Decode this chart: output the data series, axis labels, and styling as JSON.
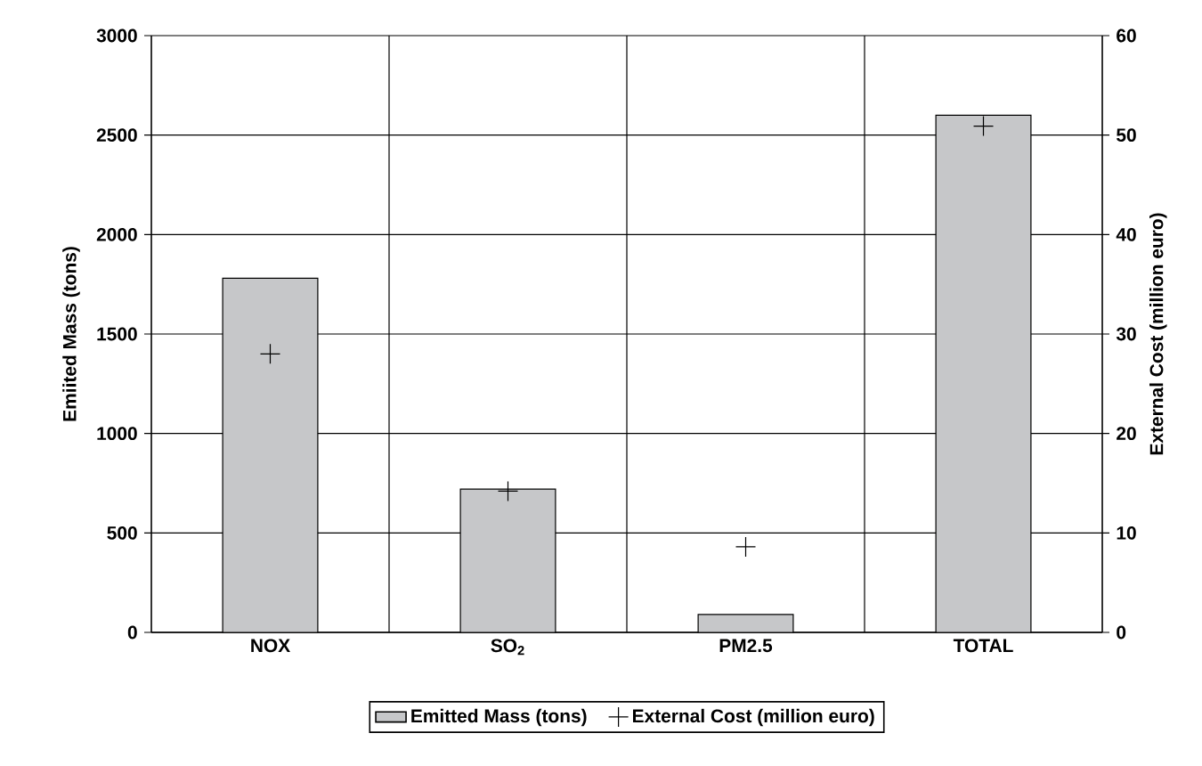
{
  "chart_data": {
    "type": "bar",
    "categories": [
      "NOX",
      "SO$_{2}$",
      "PM2.5",
      "TOTAL"
    ],
    "ylabel": "Emiited Mass (tons)",
    "y2label": "External Cost (million euro)",
    "ylim": [
      0,
      3000
    ],
    "yticks": [
      0,
      500,
      1000,
      1500,
      2000,
      2500,
      3000
    ],
    "y2lim": [
      0,
      60
    ],
    "y2ticks": [
      0,
      10,
      20,
      30,
      40,
      50,
      60
    ],
    "grid": true,
    "legend": "bottom",
    "series": [
      {
        "name": "Emitted Mass (tons)",
        "color": "#c6c7c9",
        "values": [
          1780,
          720,
          90,
          2600
        ]
      },
      {
        "name": "External Cost (million euro)",
        "type": "scatter",
        "axis": "y2",
        "marker": "cross",
        "color": "#000000",
        "x": [
          "NOX",
          "SO$_{2}$",
          "PM2.5",
          "TOTAL"
        ],
        "values": [
          28,
          14.2,
          8.6,
          50.9
        ]
      }
    ]
  }
}
